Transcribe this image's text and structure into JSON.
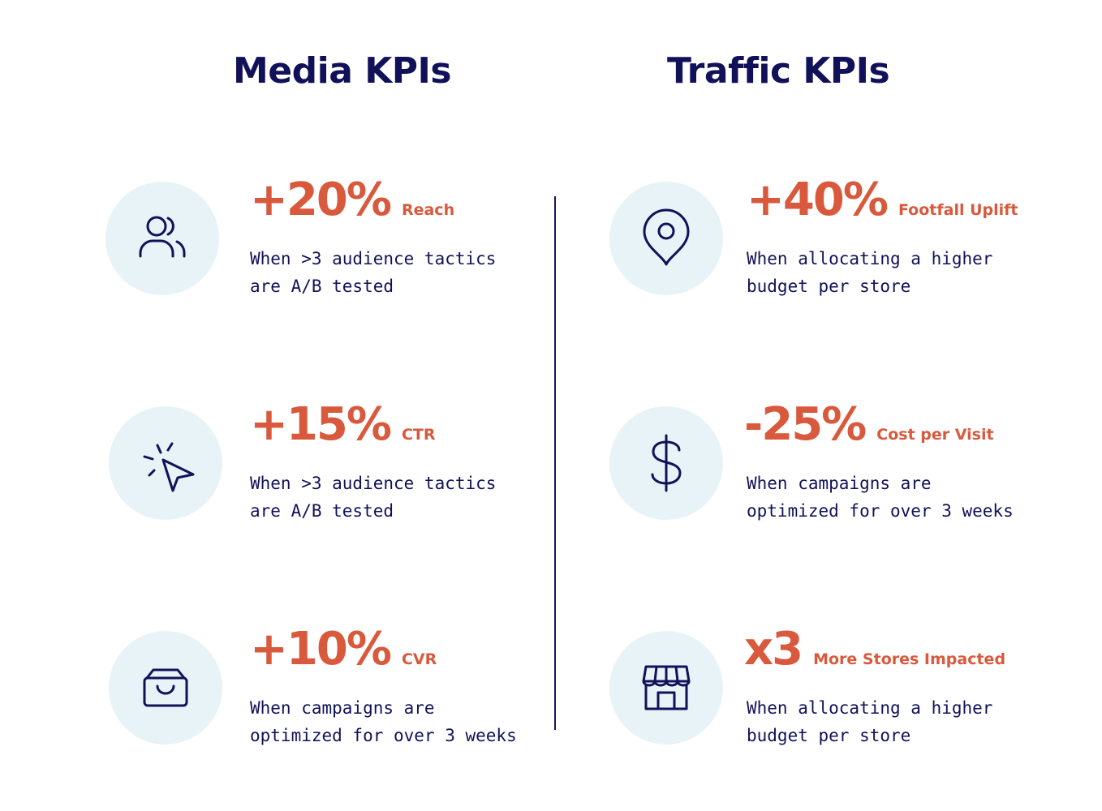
{
  "headings": {
    "media": "Media KPIs",
    "traffic": "Traffic KPIs"
  },
  "media_kpis": [
    {
      "icon": "users-icon",
      "value": "+20%",
      "metric": "Reach",
      "desc_line1": "When >3 audience tactics",
      "desc_line2": "are A/B tested"
    },
    {
      "icon": "cursor-click-icon",
      "value": "+15%",
      "metric": "CTR",
      "desc_line1": "When >3 audience tactics",
      "desc_line2": "are A/B tested"
    },
    {
      "icon": "shopping-bag-icon",
      "value": "+10%",
      "metric": "CVR",
      "desc_line1": "When campaigns are",
      "desc_line2": "optimized for over 3 weeks"
    }
  ],
  "traffic_kpis": [
    {
      "icon": "map-pin-icon",
      "value": "+40%",
      "metric": "Footfall Uplift",
      "desc_line1": "When allocating a higher",
      "desc_line2": "budget per store"
    },
    {
      "icon": "dollar-sign-icon",
      "value": "-25%",
      "metric": "Cost per Visit",
      "desc_line1": "When campaigns are",
      "desc_line2": "optimized for over 3 weeks"
    },
    {
      "icon": "storefront-icon",
      "value": "x3",
      "metric": "More Stores Impacted",
      "desc_line1": "When allocating a higher",
      "desc_line2": "budget per store"
    }
  ],
  "colors": {
    "navy": "#11115a",
    "accent": "#d9593d",
    "icon_bg": "#e7f3f6"
  }
}
